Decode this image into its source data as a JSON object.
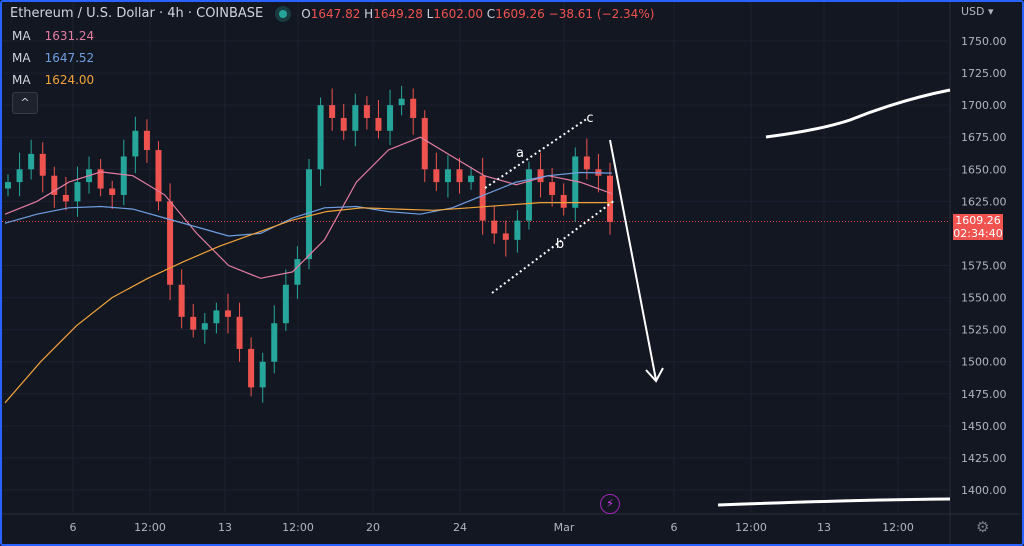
{
  "header": {
    "symbol": "Ethereum / U.S. Dollar · 4h · COINBASE",
    "open_label": "O",
    "open": "1647.82",
    "high_label": "H",
    "high": "1649.28",
    "low_label": "L",
    "low": "1602.00",
    "close_label": "C",
    "close": "1609.26",
    "change": "−38.61 (−2.34%)"
  },
  "indicators": [
    {
      "label": "MA",
      "value": "1631.24",
      "color": "#e27da0"
    },
    {
      "label": "MA",
      "value": "1647.52",
      "color": "#6f9fe0"
    },
    {
      "label": "MA",
      "value": "1624.00",
      "color": "#f0a33a"
    }
  ],
  "collapse_icon": "chevron-up-icon",
  "price_axis": {
    "currency": "USD",
    "ticks": [
      "1750.00",
      "1725.00",
      "1700.00",
      "1675.00",
      "1650.00",
      "1625.00",
      "1575.00",
      "1550.00",
      "1525.00",
      "1500.00",
      "1475.00",
      "1450.00",
      "1425.00",
      "1400.00"
    ],
    "last_price": "1609.26",
    "countdown": "02:34:40",
    "last_color": "#f05350"
  },
  "time_axis": {
    "ticks": [
      "6",
      "12:00",
      "13",
      "12:00",
      "20",
      "24",
      "Mar",
      "6",
      "12:00",
      "13",
      "12:00"
    ]
  },
  "annotations": {
    "a": "a",
    "b": "b",
    "c": "c"
  },
  "chart_data": {
    "type": "candlestick",
    "ylim": [
      1375,
      1765
    ],
    "up_color": "#26a69a",
    "down_color": "#ef5350",
    "closes": [
      1640,
      1650,
      1662,
      1645,
      1630,
      1625,
      1640,
      1650,
      1635,
      1630,
      1660,
      1680,
      1665,
      1625,
      1560,
      1535,
      1525,
      1530,
      1540,
      1535,
      1510,
      1480,
      1500,
      1530,
      1560,
      1580,
      1650,
      1700,
      1690,
      1680,
      1700,
      1690,
      1680,
      1700,
      1705,
      1690,
      1650,
      1640,
      1650,
      1640,
      1645,
      1610,
      1600,
      1595,
      1610,
      1650,
      1640,
      1630,
      1620,
      1660,
      1650,
      1645,
      1609
    ],
    "ma_series": [
      {
        "color": "#e27da0",
        "values": [
          1615,
          1625,
          1640,
          1648,
          1645,
          1630,
          1600,
          1575,
          1565,
          1570,
          1595,
          1640,
          1665,
          1675,
          1660,
          1645,
          1638,
          1645,
          1640,
          1631
        ]
      },
      {
        "color": "#6f9fe0",
        "values": [
          1608,
          1615,
          1620,
          1621,
          1619,
          1612,
          1605,
          1598,
          1600,
          1612,
          1620,
          1621,
          1617,
          1615,
          1620,
          1630,
          1640,
          1645,
          1647.5,
          1647
        ]
      },
      {
        "color": "#f0a33a",
        "values": [
          1468,
          1500,
          1528,
          1550,
          1565,
          1578,
          1590,
          1600,
          1610,
          1617,
          1620,
          1619,
          1618,
          1620,
          1622,
          1624,
          1624,
          1624
        ]
      }
    ]
  }
}
